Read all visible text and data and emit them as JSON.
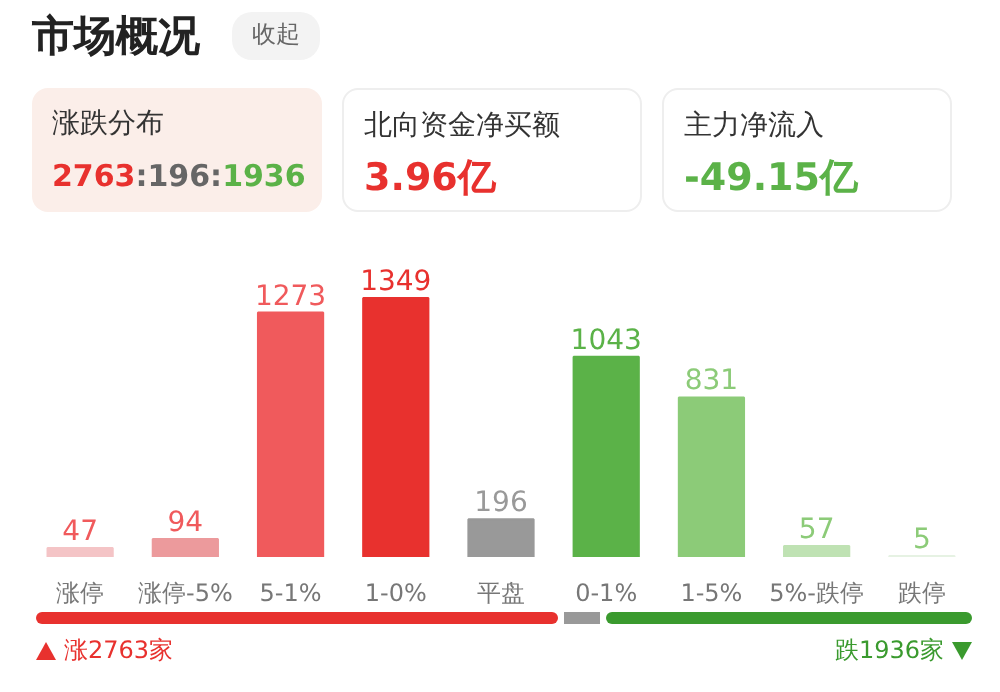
{
  "chart_data": {
    "type": "bar",
    "title": "市场概况",
    "categories": [
      "涨停",
      "涨停-5%",
      "5-1%",
      "1-0%",
      "平盘",
      "0-1%",
      "1-5%",
      "5%-跌停",
      "跌停"
    ],
    "values": [
      47,
      94,
      1273,
      1349,
      196,
      1043,
      831,
      57,
      5
    ],
    "colors": [
      "#f4c4c6",
      "#ec9a9c",
      "#f05a5c",
      "#e8312e",
      "#999999",
      "#5bb248",
      "#8ccb78",
      "#bfe2b3",
      "#e6f2e3"
    ],
    "data_labels": true,
    "grid": false,
    "annotations": [
      "收起",
      "涨跌分布",
      "2763:196:1936",
      "北向资金净买额",
      "3.96亿",
      "主力净流入",
      "-49.15亿",
      "涨2763家",
      "跌1936家"
    ]
  }
}
